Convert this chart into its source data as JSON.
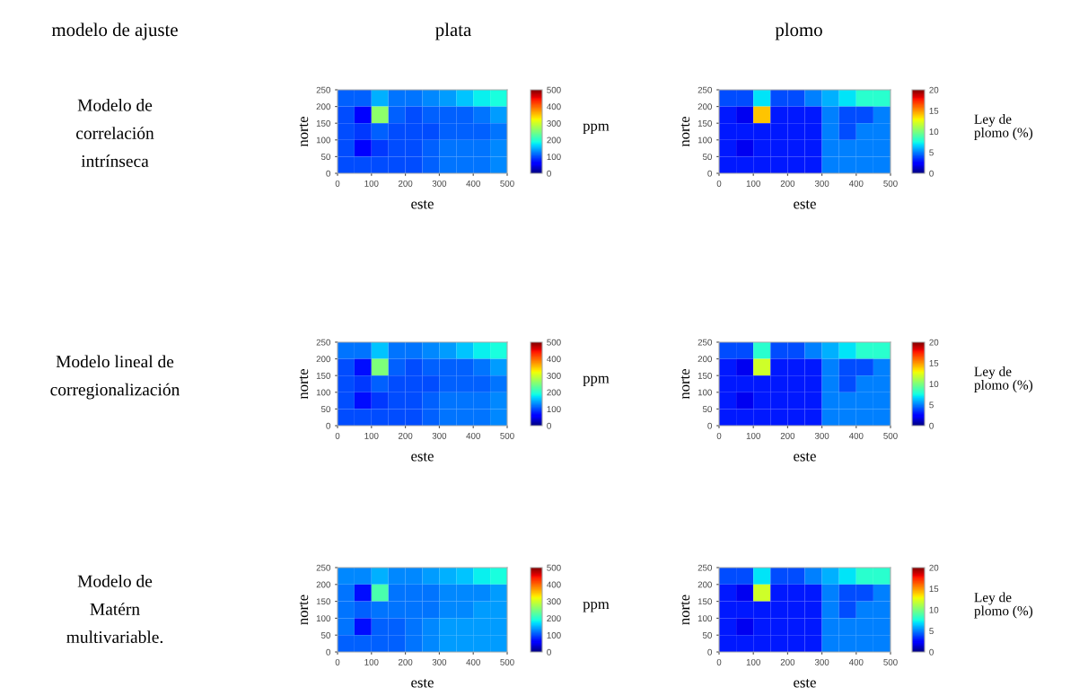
{
  "chart_data": [
    {
      "type": "heatmap",
      "title": "plata",
      "xlabel": "este",
      "ylabel": "norte",
      "clabel": "ppm",
      "annotations": [
        "modelo de ajuste",
        "Modelo de\ncorrelación\nintrínseca"
      ],
      "xlim": [
        0,
        500
      ],
      "xticks": [
        0,
        100,
        200,
        300,
        400,
        500
      ],
      "ylim": [
        0,
        250
      ],
      "yticks": [
        0,
        50,
        100,
        150,
        200,
        250
      ],
      "clim": [
        0,
        500
      ],
      "cticks": [
        0,
        100,
        200,
        300,
        400,
        500
      ],
      "cells": [
        [
          110,
          110,
          150,
          120,
          120,
          130,
          140,
          160,
          180,
          190
        ],
        [
          100,
          60,
          260,
          110,
          100,
          110,
          110,
          110,
          120,
          140
        ],
        [
          100,
          90,
          110,
          100,
          100,
          100,
          110,
          110,
          110,
          120
        ],
        [
          100,
          60,
          90,
          100,
          100,
          110,
          120,
          120,
          120,
          130
        ],
        [
          100,
          100,
          100,
          100,
          100,
          110,
          120,
          120,
          120,
          130
        ]
      ]
    },
    {
      "type": "heatmap",
      "title": "plomo",
      "xlabel": "este",
      "ylabel": "norte",
      "clabel": "Ley de\nplomo (%)",
      "xlim": [
        0,
        500
      ],
      "xticks": [
        0,
        100,
        200,
        300,
        400,
        500
      ],
      "ylim": [
        0,
        250
      ],
      "yticks": [
        0,
        50,
        100,
        150,
        200,
        250
      ],
      "clim": [
        0,
        20
      ],
      "cticks": [
        0,
        5,
        10,
        15,
        20
      ],
      "cells": [
        [
          4,
          4,
          7,
          4,
          4,
          5,
          6,
          7,
          8,
          8
        ],
        [
          3,
          2,
          14,
          3,
          3,
          3,
          5,
          4,
          4,
          5
        ],
        [
          3,
          3,
          3,
          3,
          3,
          3,
          5,
          4,
          5,
          5
        ],
        [
          3,
          2,
          3,
          3,
          3,
          3,
          5,
          5,
          5,
          5
        ],
        [
          3,
          3,
          3,
          3,
          3,
          3,
          5,
          5,
          5,
          5
        ]
      ]
    },
    {
      "type": "heatmap",
      "xlabel": "este",
      "ylabel": "norte",
      "clabel": "ppm",
      "annotations": [
        "Modelo lineal de\ncorregionalización"
      ],
      "xlim": [
        0,
        500
      ],
      "xticks": [
        0,
        100,
        200,
        300,
        400,
        500
      ],
      "ylim": [
        0,
        250
      ],
      "yticks": [
        0,
        50,
        100,
        150,
        200,
        250
      ],
      "clim": [
        0,
        500
      ],
      "cticks": [
        0,
        100,
        200,
        300,
        400,
        500
      ],
      "cells": [
        [
          120,
          120,
          160,
          120,
          120,
          130,
          140,
          160,
          180,
          190
        ],
        [
          100,
          70,
          250,
          110,
          100,
          110,
          110,
          110,
          120,
          140
        ],
        [
          100,
          90,
          110,
          100,
          100,
          100,
          110,
          110,
          110,
          120
        ],
        [
          100,
          70,
          90,
          100,
          100,
          110,
          120,
          120,
          120,
          130
        ],
        [
          100,
          100,
          100,
          100,
          100,
          110,
          120,
          120,
          120,
          130
        ]
      ]
    },
    {
      "type": "heatmap",
      "xlabel": "este",
      "ylabel": "norte",
      "clabel": "Ley de\nplomo (%)",
      "xlim": [
        0,
        500
      ],
      "xticks": [
        0,
        100,
        200,
        300,
        400,
        500
      ],
      "ylim": [
        0,
        250
      ],
      "yticks": [
        0,
        50,
        100,
        150,
        200,
        250
      ],
      "clim": [
        0,
        20
      ],
      "cticks": [
        0,
        5,
        10,
        15,
        20
      ],
      "cells": [
        [
          4,
          4,
          8,
          4,
          4,
          5,
          6,
          7,
          8,
          8
        ],
        [
          3,
          2,
          12,
          3,
          3,
          3,
          5,
          4,
          4,
          5
        ],
        [
          3,
          3,
          3,
          3,
          3,
          3,
          5,
          4,
          5,
          5
        ],
        [
          3,
          2,
          3,
          3,
          3,
          3,
          5,
          5,
          5,
          5
        ],
        [
          3,
          3,
          3,
          3,
          3,
          3,
          5,
          5,
          5,
          5
        ]
      ]
    },
    {
      "type": "heatmap",
      "xlabel": "este",
      "ylabel": "norte",
      "clabel": "ppm",
      "annotations": [
        "Modelo de\nMatérn\nmultivariable."
      ],
      "xlim": [
        0,
        500
      ],
      "xticks": [
        0,
        100,
        200,
        300,
        400,
        500
      ],
      "ylim": [
        0,
        250
      ],
      "yticks": [
        0,
        50,
        100,
        150,
        200,
        250
      ],
      "clim": [
        0,
        500
      ],
      "cticks": [
        0,
        100,
        200,
        300,
        400,
        500
      ],
      "cells": [
        [
          130,
          130,
          150,
          130,
          130,
          140,
          150,
          160,
          180,
          190
        ],
        [
          120,
          70,
          220,
          120,
          120,
          120,
          130,
          130,
          130,
          140
        ],
        [
          120,
          110,
          120,
          120,
          120,
          120,
          130,
          130,
          140,
          140
        ],
        [
          120,
          70,
          110,
          110,
          120,
          130,
          140,
          140,
          140,
          140
        ],
        [
          110,
          110,
          110,
          110,
          120,
          130,
          140,
          140,
          140,
          140
        ]
      ]
    },
    {
      "type": "heatmap",
      "xlabel": "este",
      "ylabel": "norte",
      "clabel": "Ley de\nplomo (%)",
      "xlim": [
        0,
        500
      ],
      "xticks": [
        0,
        100,
        200,
        300,
        400,
        500
      ],
      "ylim": [
        0,
        250
      ],
      "yticks": [
        0,
        50,
        100,
        150,
        200,
        250
      ],
      "clim": [
        0,
        20
      ],
      "cticks": [
        0,
        5,
        10,
        15,
        20
      ],
      "cells": [
        [
          4,
          4,
          7,
          4,
          4,
          5,
          6,
          7,
          8,
          8
        ],
        [
          3,
          2,
          12,
          3,
          3,
          3,
          5,
          4,
          4,
          5
        ],
        [
          3,
          3,
          3,
          3,
          3,
          3,
          5,
          4,
          5,
          5
        ],
        [
          3,
          2,
          3,
          3,
          3,
          3,
          5,
          5,
          5,
          5
        ],
        [
          3,
          3,
          3,
          3,
          3,
          3,
          5,
          5,
          5,
          5
        ]
      ]
    }
  ]
}
